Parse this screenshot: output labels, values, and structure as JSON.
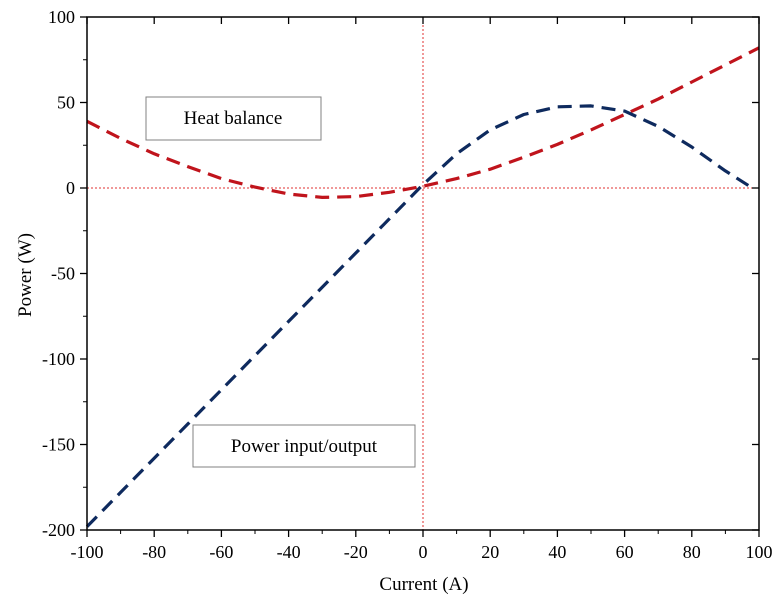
{
  "chart_data": {
    "type": "line",
    "xlabel": "Current (A)",
    "ylabel": "Power (W)",
    "xlim": [
      -100,
      100
    ],
    "ylim": [
      -200,
      100
    ],
    "x_ticks": [
      -100,
      -80,
      -60,
      -40,
      -20,
      0,
      20,
      40,
      60,
      80,
      100
    ],
    "y_ticks": [
      -200,
      -150,
      -100,
      -50,
      0,
      50,
      100
    ],
    "x_tick_labels": [
      "-100",
      "-80",
      "-60",
      "-40",
      "-20",
      "0",
      "20",
      "40",
      "60",
      "80",
      "100"
    ],
    "y_tick_labels": [
      "-200",
      "-150",
      "-100",
      "-50",
      "0",
      "50",
      "100"
    ],
    "reference_lines": {
      "x": 0,
      "y": 0,
      "color": "#e03030"
    },
    "series": [
      {
        "color": "#c0141c",
        "x": [
          -100,
          -90,
          -80,
          -70,
          -60,
          -50,
          -40,
          -30,
          -20,
          -10,
          0,
          10,
          20,
          30,
          40,
          50,
          60,
          70,
          80,
          90,
          100
        ],
        "y": [
          39,
          29,
          20,
          12.5,
          5.5,
          0.5,
          -3.5,
          -5.5,
          -5,
          -2.5,
          1,
          5.5,
          11,
          18,
          25.5,
          34,
          43,
          52,
          62,
          72,
          82
        ]
      },
      {
        "color": "#0e2a5e",
        "x": [
          -100,
          -90,
          -80,
          -70,
          -60,
          -50,
          -40,
          -30,
          -20,
          -10,
          0,
          10,
          20,
          30,
          40,
          50,
          60,
          70,
          80,
          90,
          98
        ],
        "y": [
          -198,
          -178,
          -158,
          -138,
          -118,
          -98,
          -78,
          -58,
          -38,
          -18,
          2,
          20,
          34,
          43,
          47.5,
          48,
          45,
          36,
          24,
          10,
          0
        ]
      }
    ],
    "annotations": [
      {
        "text": "Heat balance"
      },
      {
        "text": "Power input/output"
      }
    ]
  }
}
